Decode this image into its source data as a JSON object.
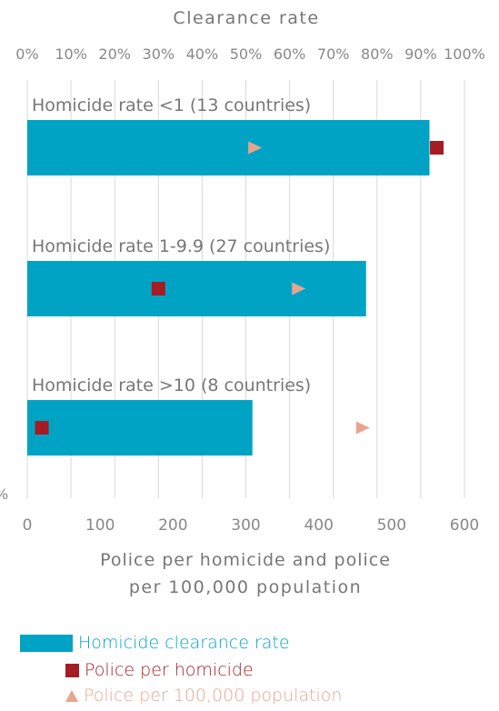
{
  "chart_data": {
    "type": "bar",
    "orientation": "horizontal",
    "top_axis": {
      "label": "Clearance rate",
      "ticks": [
        "0%",
        "10%",
        "20%",
        "30%",
        "40%",
        "50%",
        "60%",
        "70%",
        "80%",
        "90%",
        "100%"
      ],
      "range": [
        0,
        100
      ]
    },
    "bottom_axis": {
      "label_lines": [
        "Police per homicide and police",
        "per 100,000 population"
      ],
      "ticks": [
        "0",
        "100",
        "200",
        "300",
        "400",
        "500",
        "600"
      ],
      "range": [
        0,
        600
      ]
    },
    "categories": [
      "Homicide rate <1 (13 countries)",
      "Homicide rate 1-9.9 (27 countries)",
      "Homicide rate >10 (8 countries)"
    ],
    "series": [
      {
        "name": "Homicide clearance rate",
        "axis": "top",
        "mark": "bar",
        "color": "#00a3c4",
        "values": [
          92,
          77.5,
          51.5
        ]
      },
      {
        "name": "Police per homicide",
        "axis": "bottom",
        "mark": "square",
        "color": "#a51c22",
        "values": [
          562,
          180,
          20
        ]
      },
      {
        "name": "Police per 100,000 population",
        "axis": "bottom",
        "mark": "triangle",
        "color": "#e8a58e",
        "values": [
          312,
          372,
          460
        ]
      }
    ],
    "grid": true,
    "legend_position": "bottom-left",
    "stray_left_text": "%"
  }
}
